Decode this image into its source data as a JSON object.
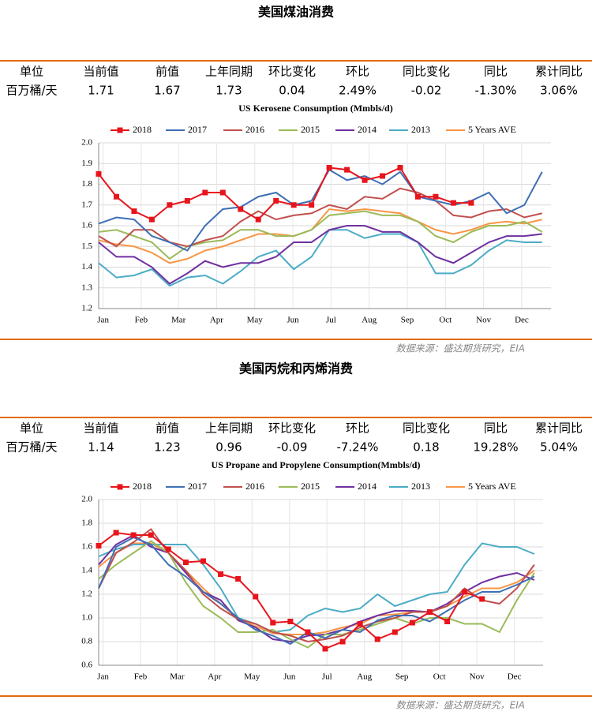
{
  "sections": [
    {
      "title": "美国煤油消费",
      "table": {
        "header": [
          "单位",
          "当前值",
          "前值",
          "上年同期",
          "环比变化",
          "环比",
          "同比变化",
          "同比",
          "累计同比"
        ],
        "rows": [
          [
            "百万桶/天",
            "1.71",
            "1.67",
            "1.73",
            "0.04",
            "2.49%",
            "-0.02",
            "-1.30%",
            "3.06%"
          ]
        ]
      },
      "source": "数据来源：盛达期货研究，EIA"
    },
    {
      "title": "美国丙烷和丙烯消费",
      "table": {
        "header": [
          "单位",
          "当前值",
          "前值",
          "上年同期",
          "环比变化",
          "环比",
          "同比变化",
          "同比",
          "累计同比"
        ],
        "rows": [
          [
            "百万桶/天",
            "1.14",
            "1.23",
            "0.96",
            "-0.09",
            "-7.24%",
            "0.18",
            "19.28%",
            "5.04%"
          ]
        ]
      },
      "source": "数据来源：盛达期货研究，EIA"
    }
  ],
  "chart_data": [
    {
      "type": "line",
      "title": "US Kerosene Consumption (Mmbls/d)",
      "grid": true,
      "x": [
        0,
        2,
        4,
        6,
        8,
        10,
        12,
        14,
        16,
        18,
        20,
        22,
        24,
        26,
        28,
        30,
        32,
        34,
        36,
        38,
        40,
        42,
        44,
        46,
        48,
        50
      ],
      "xlim": [
        0,
        51
      ],
      "xticks": [
        {
          "value": 0.5,
          "label": "Jan"
        },
        {
          "value": 4.8,
          "label": "Feb"
        },
        {
          "value": 9,
          "label": "Mar"
        },
        {
          "value": 13.3,
          "label": "Apr"
        },
        {
          "value": 17.6,
          "label": "May"
        },
        {
          "value": 21.9,
          "label": "Jun"
        },
        {
          "value": 26.2,
          "label": "Jul"
        },
        {
          "value": 30.5,
          "label": "Aug"
        },
        {
          "value": 34.8,
          "label": "Sep"
        },
        {
          "value": 39.1,
          "label": "Oct"
        },
        {
          "value": 43.4,
          "label": "Nov"
        },
        {
          "value": 47.7,
          "label": "Dec"
        }
      ],
      "ylim": [
        1.2,
        2.0
      ],
      "yticks": [
        1.2,
        1.3,
        1.4,
        1.5,
        1.6,
        1.7,
        1.8,
        1.9,
        {
          "value": 2,
          "label": "2.0"
        }
      ],
      "series": [
        {
          "name": "2018",
          "color": "#e8141c",
          "marker": "square",
          "values": [
            1.85,
            1.74,
            1.67,
            1.63,
            1.7,
            1.72,
            1.76,
            1.76,
            1.68,
            1.63,
            1.72,
            1.7,
            1.7,
            1.88,
            1.87,
            1.82,
            1.84,
            1.88,
            1.74,
            1.74,
            1.71,
            1.71,
            null,
            null,
            null,
            null
          ]
        },
        {
          "name": "2017",
          "color": "#3f6fb5",
          "values": [
            1.61,
            1.64,
            1.63,
            1.55,
            1.52,
            1.48,
            1.6,
            1.68,
            1.69,
            1.74,
            1.76,
            1.7,
            1.72,
            1.87,
            1.82,
            1.84,
            1.8,
            1.86,
            1.74,
            1.72,
            1.7,
            1.72,
            1.76,
            1.66,
            1.7,
            1.86
          ]
        },
        {
          "name": "2016",
          "color": "#c0504d",
          "values": [
            1.55,
            1.5,
            1.58,
            1.58,
            1.52,
            1.5,
            1.53,
            1.55,
            1.62,
            1.67,
            1.63,
            1.65,
            1.66,
            1.7,
            1.68,
            1.74,
            1.73,
            1.78,
            1.76,
            1.72,
            1.65,
            1.64,
            1.67,
            1.68,
            1.64,
            1.66
          ]
        },
        {
          "name": "2015",
          "color": "#9bbb59",
          "values": [
            1.57,
            1.58,
            1.55,
            1.52,
            1.44,
            1.5,
            1.52,
            1.53,
            1.58,
            1.58,
            1.55,
            1.55,
            1.58,
            1.65,
            1.66,
            1.67,
            1.65,
            1.65,
            1.62,
            1.55,
            1.52,
            1.57,
            1.6,
            1.6,
            1.62,
            1.57
          ]
        },
        {
          "name": "2014",
          "color": "#7030a0",
          "values": [
            1.52,
            1.45,
            1.45,
            1.4,
            1.32,
            1.37,
            1.43,
            1.4,
            1.42,
            1.42,
            1.45,
            1.52,
            1.52,
            1.58,
            1.6,
            1.6,
            1.57,
            1.57,
            1.52,
            1.45,
            1.42,
            1.47,
            1.52,
            1.55,
            1.55,
            1.56
          ]
        },
        {
          "name": "2013",
          "color": "#4bacc6",
          "values": [
            1.42,
            1.35,
            1.36,
            1.39,
            1.31,
            1.35,
            1.36,
            1.32,
            1.38,
            1.45,
            1.48,
            1.39,
            1.45,
            1.58,
            1.58,
            1.54,
            1.56,
            1.56,
            1.52,
            1.37,
            1.37,
            1.41,
            1.48,
            1.53,
            1.52,
            1.52
          ]
        },
        {
          "name": "5 Years AVE",
          "color": "#f79646",
          "values": [
            1.53,
            1.51,
            1.5,
            1.47,
            1.42,
            1.44,
            1.48,
            1.5,
            1.53,
            1.56,
            1.56,
            1.55,
            1.58,
            1.68,
            1.67,
            1.68,
            1.67,
            1.66,
            1.62,
            1.58,
            1.56,
            1.58,
            1.61,
            1.62,
            1.61,
            1.63
          ]
        }
      ]
    },
    {
      "type": "line",
      "title": "US Propane and Propylene Consumption(Mmbls/d)",
      "grid": true,
      "x": [
        0,
        2,
        4,
        6,
        8,
        10,
        12,
        14,
        16,
        18,
        20,
        22,
        24,
        26,
        28,
        30,
        32,
        34,
        36,
        38,
        40,
        42,
        44,
        46,
        48,
        50
      ],
      "xlim": [
        0,
        51
      ],
      "xticks": [
        {
          "value": 0.5,
          "label": "Jan"
        },
        {
          "value": 4.8,
          "label": "Feb"
        },
        {
          "value": 9,
          "label": "Mar"
        },
        {
          "value": 13.3,
          "label": "Apr"
        },
        {
          "value": 17.6,
          "label": "May"
        },
        {
          "value": 21.9,
          "label": "Jun"
        },
        {
          "value": 26.2,
          "label": "Jul"
        },
        {
          "value": 30.5,
          "label": "Aug"
        },
        {
          "value": 34.8,
          "label": "Sep"
        },
        {
          "value": 39.1,
          "label": "Oct"
        },
        {
          "value": 43.4,
          "label": "Nov"
        },
        {
          "value": 47.7,
          "label": "Dec"
        }
      ],
      "ylim": [
        0.6,
        2.0
      ],
      "yticks": [
        0.6,
        0.8,
        {
          "value": 1,
          "label": "1.0"
        },
        1.2,
        1.4,
        1.6,
        1.8,
        {
          "value": 2,
          "label": "2.0"
        }
      ],
      "series": [
        {
          "name": "2018",
          "color": "#e8141c",
          "marker": "square",
          "values": [
            1.61,
            1.72,
            1.7,
            1.7,
            1.58,
            1.47,
            1.48,
            1.37,
            1.33,
            1.18,
            0.96,
            0.97,
            0.88,
            0.74,
            0.8,
            0.95,
            0.82,
            0.88,
            0.96,
            1.05,
            0.97,
            1.22,
            1.16,
            null,
            null,
            null
          ]
        },
        {
          "name": "2017",
          "color": "#3f6fb5",
          "values": [
            1.25,
            1.6,
            1.68,
            1.62,
            1.45,
            1.35,
            1.22,
            1.12,
            1.0,
            0.9,
            0.85,
            0.78,
            0.88,
            0.83,
            0.9,
            0.88,
            0.98,
            1.02,
            1.02,
            0.97,
            1.06,
            1.15,
            1.22,
            1.22,
            1.28,
            1.35
          ]
        },
        {
          "name": "2016",
          "color": "#c0504d",
          "values": [
            1.25,
            1.55,
            1.64,
            1.75,
            1.55,
            1.4,
            1.2,
            1.08,
            0.99,
            0.95,
            0.88,
            0.85,
            0.8,
            0.82,
            0.85,
            0.92,
            0.97,
            1.0,
            1.05,
            1.05,
            1.1,
            1.25,
            1.15,
            1.12,
            1.25,
            1.45
          ]
        },
        {
          "name": "2015",
          "color": "#9bbb59",
          "values": [
            1.33,
            1.45,
            1.55,
            1.65,
            1.55,
            1.3,
            1.1,
            1.0,
            0.88,
            0.88,
            0.9,
            0.82,
            0.75,
            0.86,
            0.86,
            0.9,
            0.95,
            1.0,
            0.95,
            1.0,
            1.0,
            0.95,
            0.95,
            0.88,
            1.15,
            1.38
          ]
        },
        {
          "name": "2014",
          "color": "#7030a0",
          "values": [
            1.45,
            1.62,
            1.7,
            1.6,
            1.55,
            1.38,
            1.22,
            1.15,
            0.98,
            0.92,
            0.82,
            0.8,
            0.85,
            0.86,
            0.9,
            0.97,
            1.02,
            1.06,
            1.06,
            1.05,
            1.12,
            1.22,
            1.3,
            1.35,
            1.38,
            1.32
          ]
        },
        {
          "name": "2013",
          "color": "#4bacc6",
          "values": [
            1.52,
            1.58,
            1.62,
            1.62,
            1.62,
            1.62,
            1.45,
            1.25,
            1.0,
            0.95,
            0.88,
            0.9,
            1.02,
            1.08,
            1.05,
            1.08,
            1.2,
            1.1,
            1.15,
            1.2,
            1.22,
            1.45,
            1.63,
            1.6,
            1.6,
            1.54
          ]
        },
        {
          "name": "5 Years AVE",
          "color": "#f79646",
          "values": [
            1.43,
            1.55,
            1.63,
            1.63,
            1.55,
            1.4,
            1.25,
            1.12,
            0.99,
            0.93,
            0.87,
            0.86,
            0.86,
            0.88,
            0.92,
            0.95,
            1.02,
            1.03,
            1.05,
            1.05,
            1.1,
            1.18,
            1.25,
            1.25,
            1.3,
            1.4
          ]
        }
      ]
    }
  ]
}
